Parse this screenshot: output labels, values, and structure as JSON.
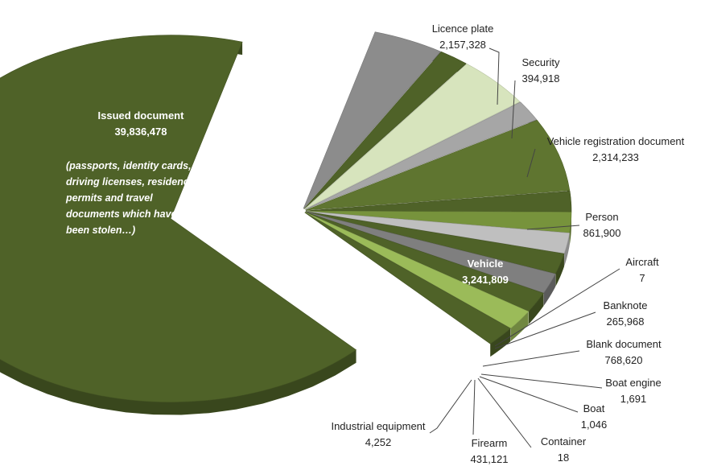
{
  "chart_data": {
    "type": "pie",
    "exploded": true,
    "style": "3d",
    "slices": [
      {
        "name": "Issued document",
        "value": 39836478,
        "label_value": "39,836,478",
        "color": "#4f6228",
        "note": [
          "(passports, identity cards,",
          "driving licenses, residence",
          "permits and travel",
          "documents which have",
          "been stolen…)"
        ]
      },
      {
        "name": "Licence plate",
        "value": 2157328,
        "label_value": "2,157,328",
        "color": "#8c8c8c"
      },
      {
        "name": "Security",
        "value": 394918,
        "label_value": "394,918",
        "color": "#4f6228"
      },
      {
        "name": "Vehicle registration document",
        "value": 2314233,
        "label_value": "2,314,233",
        "color": "#d7e4bd"
      },
      {
        "name": "Person",
        "value": 861900,
        "label_value": "861,900",
        "color": "#a6a6a6"
      },
      {
        "name": "Vehicle",
        "value": 3241809,
        "label_value": "3,241,809",
        "color": "#5f7530"
      },
      {
        "name": "Aircraft",
        "value": 7,
        "label_value": "7",
        "color": "#4f6228"
      },
      {
        "name": "Banknote",
        "value": 265968,
        "label_value": "265,968",
        "color": "#77933c"
      },
      {
        "name": "Blank document",
        "value": 768620,
        "label_value": "768,620",
        "color": "#bfbfbf"
      },
      {
        "name": "Boat engine",
        "value": 1691,
        "label_value": "1,691",
        "color": "#4f6228"
      },
      {
        "name": "Boat",
        "value": 1046,
        "label_value": "1,046",
        "color": "#7f7f7f"
      },
      {
        "name": "Container",
        "value": 18,
        "label_value": "18",
        "color": "#4f6228"
      },
      {
        "name": "Firearm",
        "value": 431121,
        "label_value": "431,121",
        "color": "#9bbb59"
      },
      {
        "name": "Industrial equipment",
        "value": 4252,
        "label_value": "4,252",
        "color": "#4f6228"
      }
    ]
  }
}
